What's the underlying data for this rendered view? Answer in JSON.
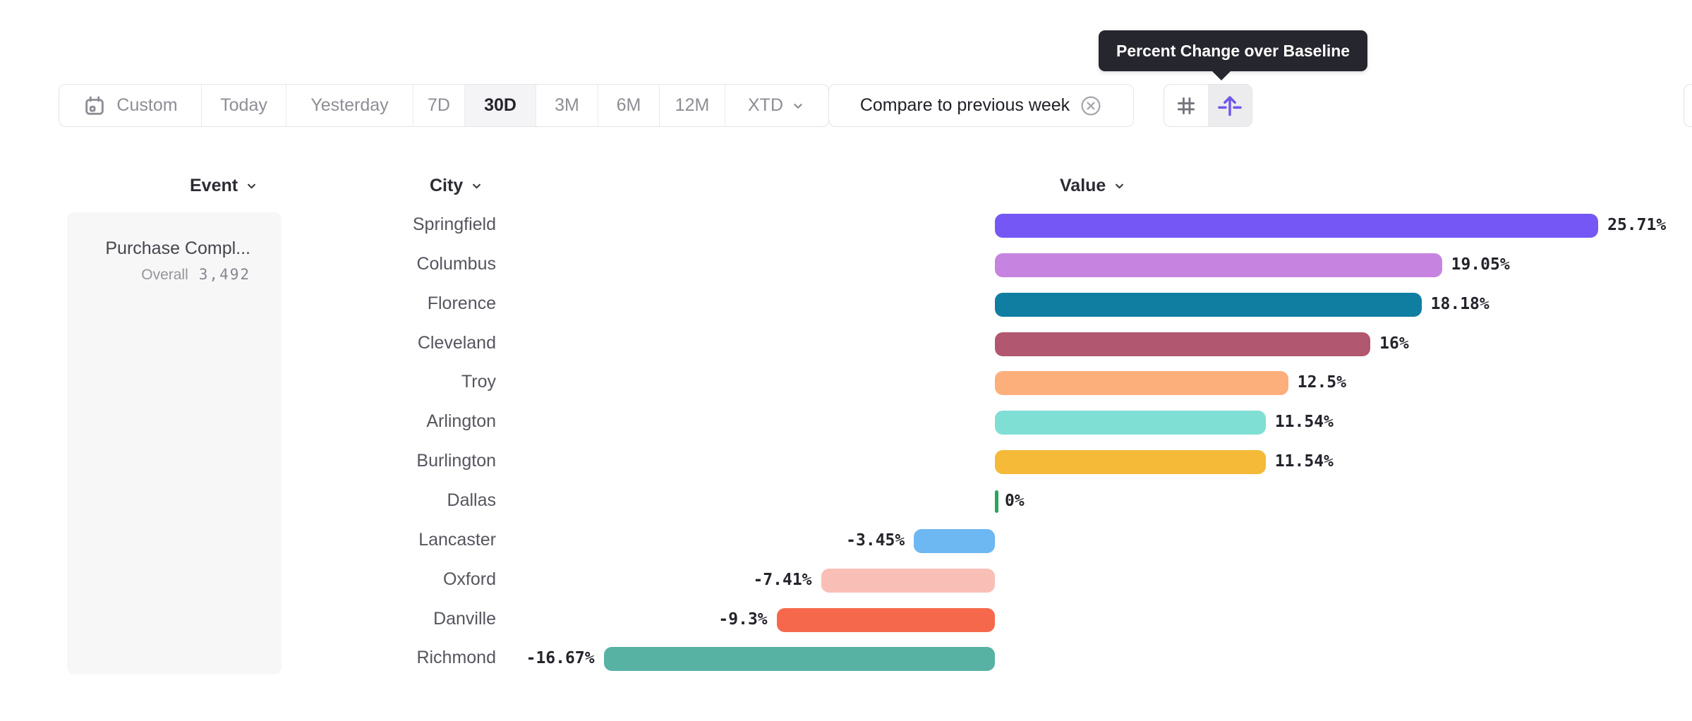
{
  "toolbar": {
    "date_ranges": [
      {
        "label": "Custom",
        "icon": "calendar-icon",
        "selected": false
      },
      {
        "label": "Today",
        "selected": false
      },
      {
        "label": "Yesterday",
        "selected": false
      },
      {
        "label": "7D",
        "selected": false
      },
      {
        "label": "30D",
        "selected": true
      },
      {
        "label": "3M",
        "selected": false
      },
      {
        "label": "6M",
        "selected": false
      },
      {
        "label": "12M",
        "selected": false
      },
      {
        "label": "XTD",
        "icon": "chevron-down-icon",
        "selected": false
      }
    ],
    "compare_button": {
      "label": "Compare to previous week",
      "icon": "remove-circle-icon"
    },
    "view_toggles": [
      {
        "icon": "hash-grid-icon",
        "meaning": "absolute numbers",
        "selected": false
      },
      {
        "icon": "percent-baseline-arrow-icon",
        "meaning": "percent change over baseline",
        "selected": true
      }
    ]
  },
  "tooltip": {
    "text": "Percent Change over Baseline"
  },
  "table": {
    "headers": [
      {
        "label": "Event"
      },
      {
        "label": "City"
      },
      {
        "label": "Value"
      }
    ]
  },
  "event_panel": {
    "name": "Purchase Compl...",
    "metric_label": "Overall",
    "metric_value": "3,492"
  },
  "chart_data": {
    "type": "bar",
    "orientation": "horizontal",
    "title": "Percent Change over Baseline",
    "xlabel": "Value",
    "ylabel": "City",
    "xlim": [
      -16.67,
      25.71
    ],
    "grid": false,
    "categories": [
      "Springfield",
      "Columbus",
      "Florence",
      "Cleveland",
      "Troy",
      "Arlington",
      "Burlington",
      "Dallas",
      "Lancaster",
      "Oxford",
      "Danville",
      "Richmond"
    ],
    "values": [
      25.71,
      19.05,
      18.18,
      16,
      12.5,
      11.54,
      11.54,
      0,
      -3.45,
      -7.41,
      -9.3,
      -16.67
    ],
    "labels": [
      "25.71%",
      "19.05%",
      "18.18%",
      "16%",
      "12.5%",
      "11.54%",
      "11.54%",
      "0%",
      "-3.45%",
      "-7.41%",
      "-9.3%",
      "-16.67%"
    ],
    "colors": [
      "#7557F5",
      "#C684E0",
      "#107EA1",
      "#B25770",
      "#FCAE7B",
      "#80DFD5",
      "#F4BA38",
      "#2AA45F",
      "#6DB7F2",
      "#F9BEB6",
      "#F6684B",
      "#57B2A4"
    ]
  },
  "colors": {
    "accent": "#6E56EB",
    "tooltip_bg": "#26262E",
    "selected_bg": "#F4F4F6",
    "border": "#E4E4E7",
    "zero_tick": "#2AA45F"
  }
}
